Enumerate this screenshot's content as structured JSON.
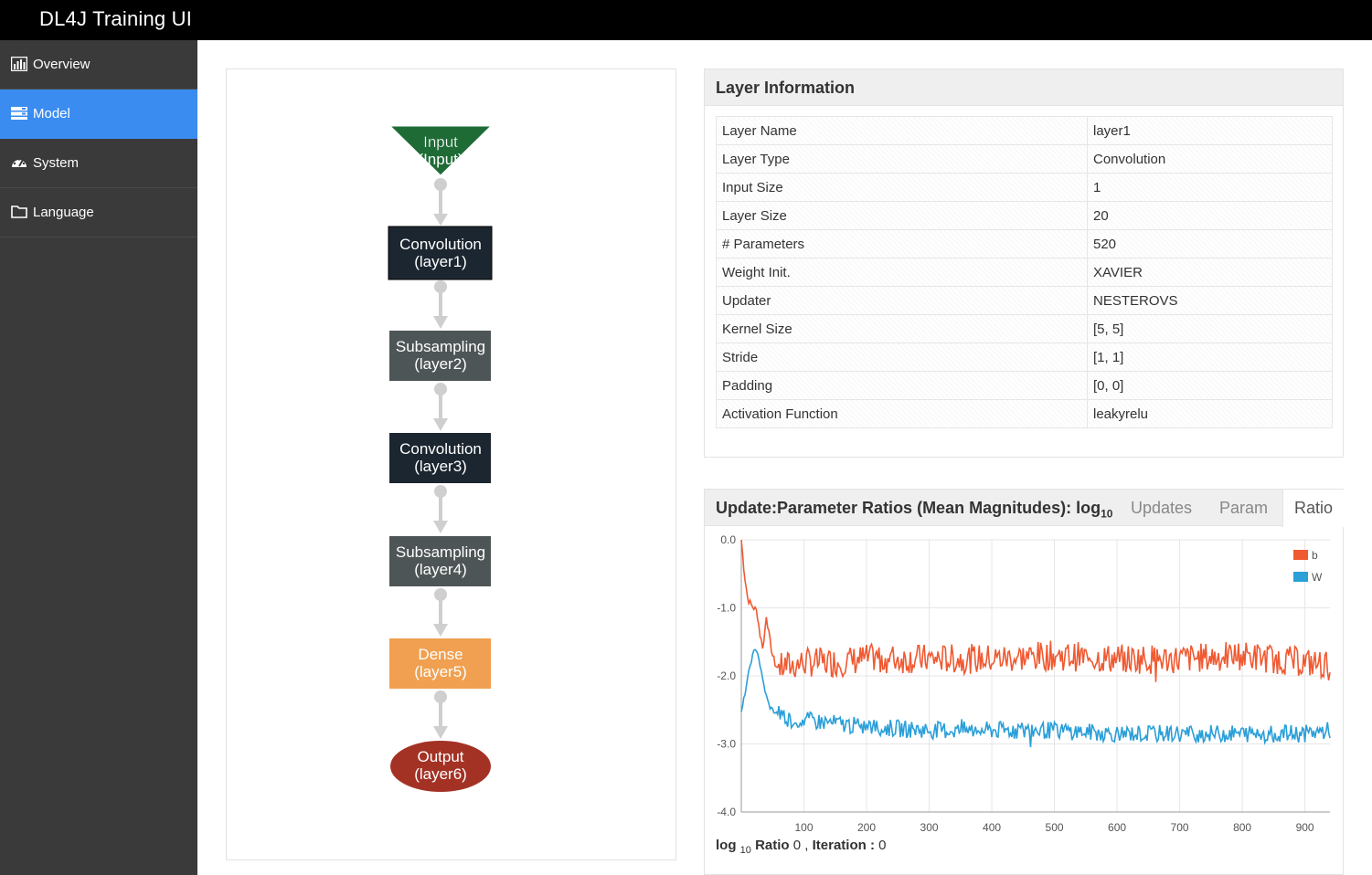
{
  "app": {
    "title": "DL4J Training UI"
  },
  "sidebar": {
    "items": [
      {
        "label": "Overview",
        "icon": "bar-chart-icon"
      },
      {
        "label": "Model",
        "icon": "layers-icon",
        "active": true
      },
      {
        "label": "System",
        "icon": "dashboard-icon"
      },
      {
        "label": "Language",
        "icon": "folder-icon"
      }
    ]
  },
  "graph": {
    "nodes": [
      {
        "line1": "Input",
        "line2": "(Input)",
        "kind": "input",
        "color": "#1e6b36"
      },
      {
        "line1": "Convolution",
        "line2": "(layer1)",
        "kind": "box",
        "color": "#1c2630"
      },
      {
        "line1": "Subsampling",
        "line2": "(layer2)",
        "kind": "box",
        "color": "#4e5556"
      },
      {
        "line1": "Convolution",
        "line2": "(layer3)",
        "kind": "box",
        "color": "#1c2630"
      },
      {
        "line1": "Subsampling",
        "line2": "(layer4)",
        "kind": "box",
        "color": "#4e5556"
      },
      {
        "line1": "Dense",
        "line2": "(layer5)",
        "kind": "box",
        "color": "#f0a050"
      },
      {
        "line1": "Output",
        "line2": "(layer6)",
        "kind": "ellipse",
        "color": "#a33225"
      }
    ]
  },
  "layer_info": {
    "title": "Layer Information",
    "rows": [
      {
        "key": "Layer Name",
        "value": "layer1"
      },
      {
        "key": "Layer Type",
        "value": "Convolution"
      },
      {
        "key": "Input Size",
        "value": "1"
      },
      {
        "key": "Layer Size",
        "value": "20"
      },
      {
        "key": "# Parameters",
        "value": "520"
      },
      {
        "key": "Weight Init.",
        "value": "XAVIER"
      },
      {
        "key": "Updater",
        "value": "NESTEROVS"
      },
      {
        "key": "Kernel Size",
        "value": "[5, 5]"
      },
      {
        "key": "Stride",
        "value": "[1, 1]"
      },
      {
        "key": "Padding",
        "value": "[0, 0]"
      },
      {
        "key": "Activation Function",
        "value": "leakyrelu"
      }
    ]
  },
  "ratio_chart": {
    "title_main": "Update:Parameter Ratios (Mean Magnitudes): log",
    "title_sub": "10",
    "tabs": [
      {
        "label": "Updates"
      },
      {
        "label": "Param"
      },
      {
        "label": "Ratio",
        "active": true
      }
    ],
    "readout": {
      "label": "log",
      "sub": "10",
      "label2": "Ratio",
      "ratio_value": "0",
      "sep": ",",
      "iter_label": "Iteration :",
      "iter_value": "0"
    }
  },
  "chart_data": {
    "type": "line",
    "x_ticks": [
      100,
      200,
      300,
      400,
      500,
      600,
      700,
      800,
      900
    ],
    "y_ticks": [
      "0.0",
      "-1.0",
      "-2.0",
      "-3.0",
      "-4.0"
    ],
    "xlim": [
      0,
      940
    ],
    "ylim": [
      -4.0,
      0.0
    ],
    "grid": true,
    "legend_position": "top-right",
    "series": [
      {
        "name": "b",
        "color": "#f05a32",
        "x": [
          0,
          5,
          10,
          15,
          20,
          25,
          30,
          35,
          40,
          45,
          50,
          55,
          60,
          70,
          80,
          100,
          150,
          200,
          300,
          400,
          500,
          600,
          700,
          800,
          900,
          940
        ],
        "y": [
          0.0,
          -0.5,
          -0.85,
          -0.95,
          -1.0,
          -1.05,
          -1.4,
          -1.6,
          -1.1,
          -1.45,
          -1.7,
          -1.85,
          -1.9,
          -1.85,
          -1.85,
          -1.8,
          -1.8,
          -1.75,
          -1.75,
          -1.75,
          -1.7,
          -1.75,
          -1.75,
          -1.7,
          -1.8,
          -1.85
        ]
      },
      {
        "name": "W",
        "color": "#2a9fd8",
        "x": [
          0,
          5,
          10,
          15,
          20,
          25,
          30,
          35,
          40,
          45,
          50,
          55,
          60,
          70,
          80,
          100,
          150,
          200,
          300,
          400,
          500,
          600,
          700,
          800,
          900,
          940
        ],
        "y": [
          -2.55,
          -2.3,
          -2.05,
          -1.8,
          -1.65,
          -1.6,
          -1.85,
          -2.1,
          -2.3,
          -2.45,
          -2.5,
          -2.55,
          -2.55,
          -2.6,
          -2.65,
          -2.65,
          -2.7,
          -2.75,
          -2.8,
          -2.8,
          -2.8,
          -2.85,
          -2.85,
          -2.85,
          -2.85,
          -2.8
        ]
      }
    ]
  }
}
